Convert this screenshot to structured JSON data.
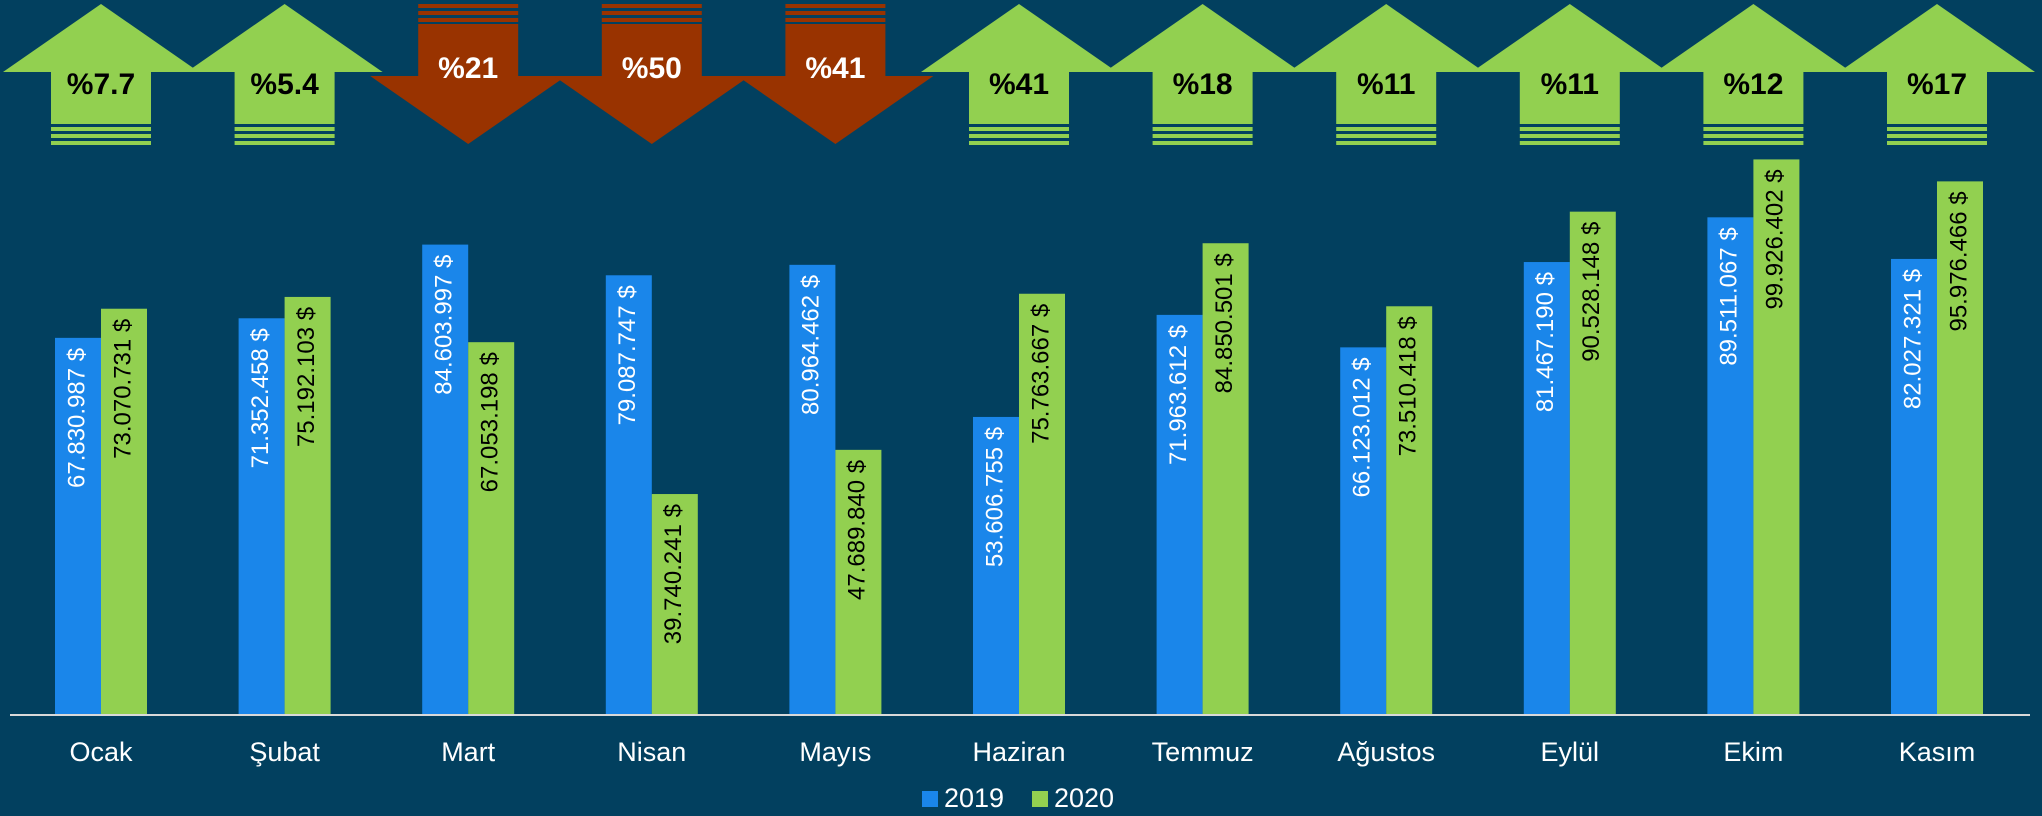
{
  "chart_data": {
    "type": "bar",
    "categories": [
      "Ocak",
      "Şubat",
      "Mart",
      "Nisan",
      "Mayıs",
      "Haziran",
      "Temmuz",
      "Ağustos",
      "Eylül",
      "Ekim",
      "Kasım"
    ],
    "series": [
      {
        "name": "2019",
        "color": "#1a86ea",
        "values": [
          67830987,
          71352458,
          84603997,
          79087747,
          80964462,
          53606755,
          71963612,
          66123012,
          81467190,
          89511067,
          82027321
        ],
        "value_labels": [
          "67.830.987 $",
          "71.352.458 $",
          "84.603.997 $",
          "79.087.747 $",
          "80.964.462 $",
          "53.606.755 $",
          "71.963.612 $",
          "66.123.012 $",
          "81.467.190 $",
          "89.511.067 $",
          "82.027.321 $"
        ]
      },
      {
        "name": "2020",
        "color": "#92d050",
        "values": [
          73070731,
          75192103,
          67053198,
          39740241,
          47689840,
          75763667,
          84850501,
          73510418,
          90528148,
          99926402,
          95976466
        ],
        "value_labels": [
          "73.070.731 $",
          "75.192.103 $",
          "67.053.198 $",
          "39.740.241 $",
          "47.689.840 $",
          "75.763.667 $",
          "84.850.501 $",
          "73.510.418 $",
          "90.528.148 $",
          "99.926.402 $",
          "95.976.466 $"
        ]
      }
    ],
    "change": [
      7.7,
      5.4,
      -21,
      -50,
      -41,
      41,
      18,
      11,
      11,
      12,
      17
    ],
    "change_labels": [
      "%7.7",
      "%5.4",
      "%21",
      "%50",
      "%41",
      "%41",
      "%18",
      "%11",
      "%11",
      "%12",
      "%17"
    ],
    "up_color": "#92d050",
    "down_color": "#993300",
    "ylim": [
      0,
      100000000
    ]
  }
}
